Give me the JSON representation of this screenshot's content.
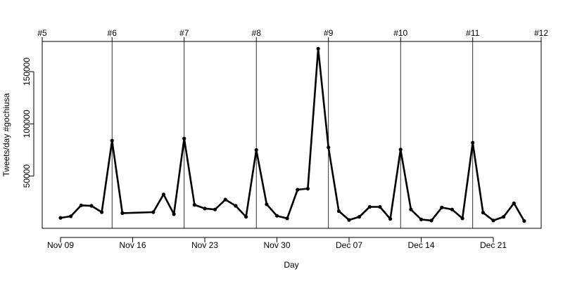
{
  "chart_data": {
    "type": "line",
    "title": "",
    "xlabel": "Day",
    "ylabel": "Tweets/day #gochiusa",
    "x_ticks": [
      {
        "label": "Nov 09",
        "x": 0
      },
      {
        "label": "Nov 16",
        "x": 7
      },
      {
        "label": "Nov 23",
        "x": 14
      },
      {
        "label": "Nov 30",
        "x": 21
      },
      {
        "label": "Dec 07",
        "x": 28
      },
      {
        "label": "Dec 14",
        "x": 35
      },
      {
        "label": "Dec 21",
        "x": 42
      }
    ],
    "y_ticks": [
      50000,
      100000,
      150000
    ],
    "xlim": [
      -2,
      47
    ],
    "ylim": [
      0,
      180000
    ],
    "episodes": [
      {
        "label": "#5",
        "x": -2
      },
      {
        "label": "#6",
        "x": 5
      },
      {
        "label": "#7",
        "x": 12
      },
      {
        "label": "#8",
        "x": 19
      },
      {
        "label": "#9",
        "x": 26
      },
      {
        "label": "#10",
        "x": 33
      },
      {
        "label": "#11",
        "x": 40
      },
      {
        "label": "#12",
        "x": 47
      }
    ],
    "episode_lines_x": [
      5,
      12,
      19,
      26,
      33,
      40
    ],
    "series": [
      {
        "color": "#000000",
        "x": [
          0,
          1,
          2,
          3,
          4,
          5,
          6,
          9,
          10,
          11,
          12,
          13,
          14,
          15,
          16,
          17,
          18,
          19,
          20,
          21,
          22,
          23,
          24,
          25,
          26,
          27,
          28,
          29,
          30,
          31,
          32,
          33,
          34,
          35,
          36,
          37,
          38,
          39,
          40,
          41,
          42,
          43,
          44,
          45
        ],
        "y": [
          10000,
          11500,
          22000,
          21500,
          15500,
          84000,
          14500,
          15500,
          32500,
          13500,
          86000,
          22500,
          19000,
          18000,
          27500,
          21500,
          11000,
          75000,
          23000,
          12000,
          9500,
          37000,
          38000,
          172000,
          77500,
          16500,
          8000,
          11000,
          20500,
          20500,
          9000,
          75500,
          18000,
          8500,
          7500,
          20000,
          18000,
          9500,
          82000,
          15000,
          7500,
          11000,
          24000,
          7000
        ]
      }
    ]
  }
}
